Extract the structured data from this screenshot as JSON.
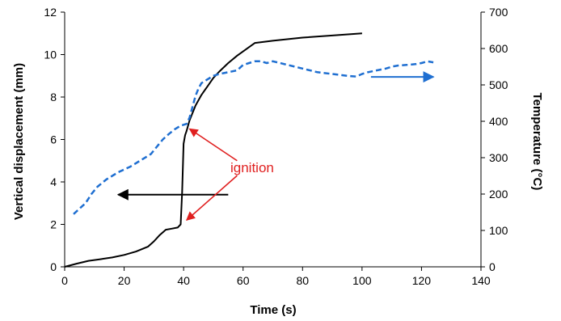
{
  "chart_data": {
    "type": "line",
    "xlabel": "Time (s)",
    "ylabel": "Vertical displacement (mm)",
    "y2label": "Temperature (°C)",
    "xlim": [
      0,
      140
    ],
    "ylim": [
      0,
      12
    ],
    "y2lim": [
      0,
      700
    ],
    "xticks": [
      0,
      20,
      40,
      60,
      80,
      100,
      120,
      140
    ],
    "yticks": [
      0,
      2,
      4,
      6,
      8,
      10,
      12
    ],
    "y2ticks": [
      0,
      100,
      200,
      300,
      400,
      500,
      600,
      700
    ],
    "grid": false,
    "legend": "none",
    "colors": {
      "displacement": "#000000",
      "temperature": "#1f6fd1",
      "annotation": "#e02020"
    },
    "series": [
      {
        "axis": "left",
        "style": "solid",
        "x": [
          0,
          4,
          8,
          12,
          16,
          20,
          24,
          28,
          30,
          32,
          34,
          36,
          38,
          39,
          39.5,
          40,
          40.5,
          41,
          42,
          44,
          46,
          48,
          50,
          52,
          55,
          58,
          61,
          64,
          70,
          80,
          90,
          100
        ],
        "y": [
          0,
          0.15,
          0.28,
          0.36,
          0.44,
          0.56,
          0.72,
          0.95,
          1.2,
          1.5,
          1.75,
          1.8,
          1.85,
          2.0,
          3.5,
          5.8,
          6.2,
          6.4,
          6.9,
          7.6,
          8.1,
          8.5,
          8.9,
          9.2,
          9.6,
          9.95,
          10.25,
          10.55,
          10.65,
          10.8,
          10.9,
          11.0
        ]
      },
      {
        "axis": "right",
        "style": "dashed",
        "x": [
          3,
          5,
          7,
          9,
          11,
          14,
          18,
          22,
          26,
          29,
          31,
          33,
          35,
          37,
          39,
          41,
          42,
          43,
          44,
          45,
          46,
          48,
          50,
          52,
          55,
          58,
          60,
          62,
          64,
          66,
          68,
          70,
          75,
          80,
          85,
          90,
          95,
          98,
          100,
          102,
          105,
          108,
          110,
          112,
          115,
          118,
          120,
          122,
          124
        ],
        "y": [
          145,
          160,
          175,
          200,
          220,
          240,
          260,
          275,
          295,
          310,
          330,
          350,
          365,
          378,
          388,
          393,
          410,
          440,
          470,
          490,
          505,
          515,
          525,
          530,
          535,
          540,
          555,
          560,
          565,
          565,
          560,
          565,
          555,
          545,
          535,
          530,
          525,
          523,
          530,
          535,
          540,
          545,
          550,
          553,
          555,
          557,
          560,
          565,
          562
        ]
      }
    ],
    "annotations": [
      {
        "text": "ignition",
        "x": 59,
        "y": 4.8
      }
    ]
  }
}
